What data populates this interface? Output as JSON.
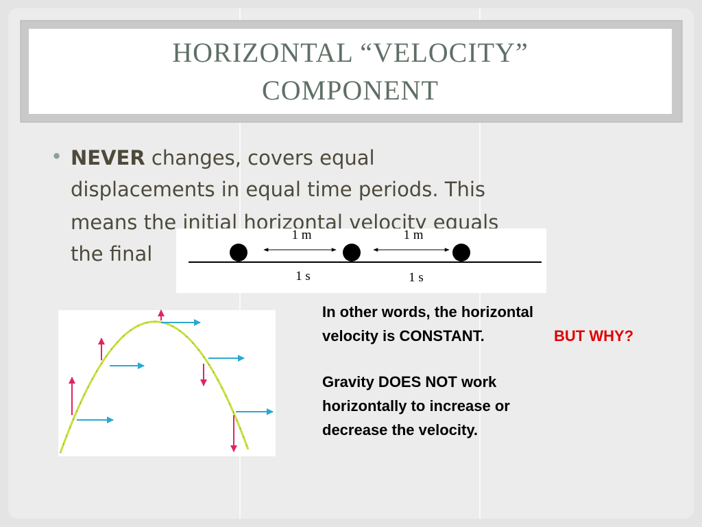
{
  "slide": {
    "title_lines": [
      "HORIZONTAL “VELOCITY”",
      "COMPONENT"
    ],
    "bullet": {
      "bold": "NEVER",
      "lines": [
        "changes, covers equal",
        "displacements in equal time periods. This",
        "means the initial horizontal velocity equals",
        "the final"
      ]
    },
    "diagram": {
      "distance_labels": [
        "1 m",
        "1 m"
      ],
      "time_labels": [
        "1 s",
        "1 s"
      ]
    },
    "note": {
      "first_lines": [
        "In other words, the horizontal",
        "velocity is CONSTANT."
      ],
      "emphasis": "BUT WHY?",
      "second_lines": [
        "Gravity DOES NOT work",
        "horizontally to increase or",
        "decrease the velocity."
      ]
    }
  }
}
